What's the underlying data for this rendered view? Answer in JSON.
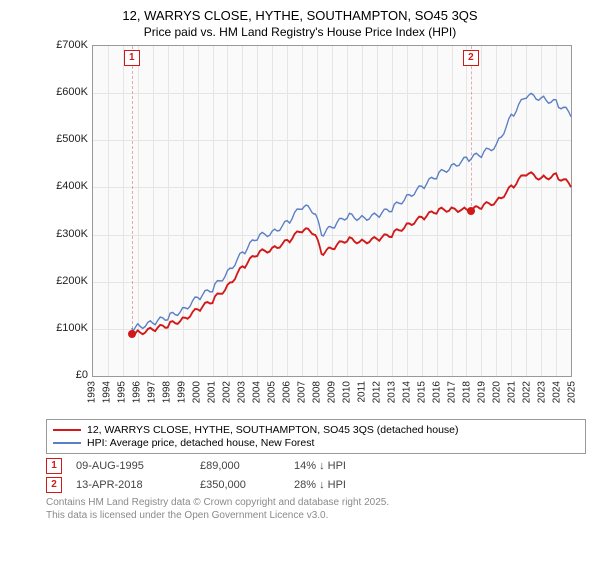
{
  "title": "12, WARRYS CLOSE, HYTHE, SOUTHAMPTON, SO45 3QS",
  "subtitle": "Price paid vs. HM Land Registry's House Price Index (HPI)",
  "chart": {
    "type": "line",
    "background_color": "#fafafa",
    "grid_color": "#e5e5e5",
    "border_color": "#999999",
    "y": {
      "min": 0,
      "max": 700000,
      "step": 100000,
      "tick_prefix": "£",
      "tick_format": "K",
      "label_fontsize": 11
    },
    "x": {
      "min": 1993,
      "max": 2025,
      "step": 1,
      "label_fontsize": 10
    },
    "series": [
      {
        "id": "property",
        "label": "12, WARRYS CLOSE, HYTHE, SOUTHAMPTON, SO45 3QS (detached house)",
        "color": "#d11919",
        "line_width": 2,
        "data": [
          [
            1995.6,
            89000
          ],
          [
            1996,
            92000
          ],
          [
            1997,
            98000
          ],
          [
            1998,
            108000
          ],
          [
            1999,
            120000
          ],
          [
            2000,
            140000
          ],
          [
            2001,
            160000
          ],
          [
            2002,
            190000
          ],
          [
            2003,
            230000
          ],
          [
            2004,
            260000
          ],
          [
            2005,
            270000
          ],
          [
            2006,
            285000
          ],
          [
            2007,
            310000
          ],
          [
            2007.8,
            305000
          ],
          [
            2008.3,
            260000
          ],
          [
            2009,
            270000
          ],
          [
            2010,
            290000
          ],
          [
            2011,
            285000
          ],
          [
            2012,
            290000
          ],
          [
            2013,
            300000
          ],
          [
            2014,
            320000
          ],
          [
            2015,
            335000
          ],
          [
            2016,
            350000
          ],
          [
            2017,
            355000
          ],
          [
            2018.3,
            350000
          ],
          [
            2019,
            360000
          ],
          [
            2020,
            370000
          ],
          [
            2021,
            400000
          ],
          [
            2022,
            430000
          ],
          [
            2023,
            420000
          ],
          [
            2024,
            425000
          ],
          [
            2025,
            405000
          ]
        ]
      },
      {
        "id": "hpi",
        "label": "HPI: Average price, detached house, New Forest",
        "color": "#5a7fc4",
        "line_width": 1.5,
        "data": [
          [
            1995.6,
            102000
          ],
          [
            1996,
            105000
          ],
          [
            1997,
            112000
          ],
          [
            1998,
            125000
          ],
          [
            1999,
            140000
          ],
          [
            2000,
            165000
          ],
          [
            2001,
            185000
          ],
          [
            2002,
            220000
          ],
          [
            2003,
            260000
          ],
          [
            2004,
            295000
          ],
          [
            2005,
            305000
          ],
          [
            2006,
            325000
          ],
          [
            2007,
            360000
          ],
          [
            2007.8,
            350000
          ],
          [
            2008.3,
            300000
          ],
          [
            2009,
            315000
          ],
          [
            2010,
            340000
          ],
          [
            2011,
            335000
          ],
          [
            2012,
            340000
          ],
          [
            2013,
            355000
          ],
          [
            2014,
            380000
          ],
          [
            2015,
            400000
          ],
          [
            2016,
            425000
          ],
          [
            2017,
            445000
          ],
          [
            2018,
            460000
          ],
          [
            2019,
            470000
          ],
          [
            2020,
            490000
          ],
          [
            2021,
            550000
          ],
          [
            2022,
            595000
          ],
          [
            2023,
            590000
          ],
          [
            2024,
            580000
          ],
          [
            2025,
            555000
          ]
        ]
      }
    ],
    "markers": [
      {
        "n": "1",
        "year": 1995.6,
        "value": 89000,
        "color": "#d11919"
      },
      {
        "n": "2",
        "year": 2018.3,
        "value": 350000,
        "color": "#d11919"
      }
    ]
  },
  "legend": {
    "items": [
      {
        "color": "#d11919",
        "label": "12, WARRYS CLOSE, HYTHE, SOUTHAMPTON, SO45 3QS (detached house)"
      },
      {
        "color": "#5a7fc4",
        "label": "HPI: Average price, detached house, New Forest"
      }
    ]
  },
  "sales": [
    {
      "n": "1",
      "date": "09-AUG-1995",
      "price": "£89,000",
      "delta": "14% ↓ HPI"
    },
    {
      "n": "2",
      "date": "13-APR-2018",
      "price": "£350,000",
      "delta": "28% ↓ HPI"
    }
  ],
  "footnote_l1": "Contains HM Land Registry data © Crown copyright and database right 2025.",
  "footnote_l2": "This data is licensed under the Open Government Licence v3.0."
}
